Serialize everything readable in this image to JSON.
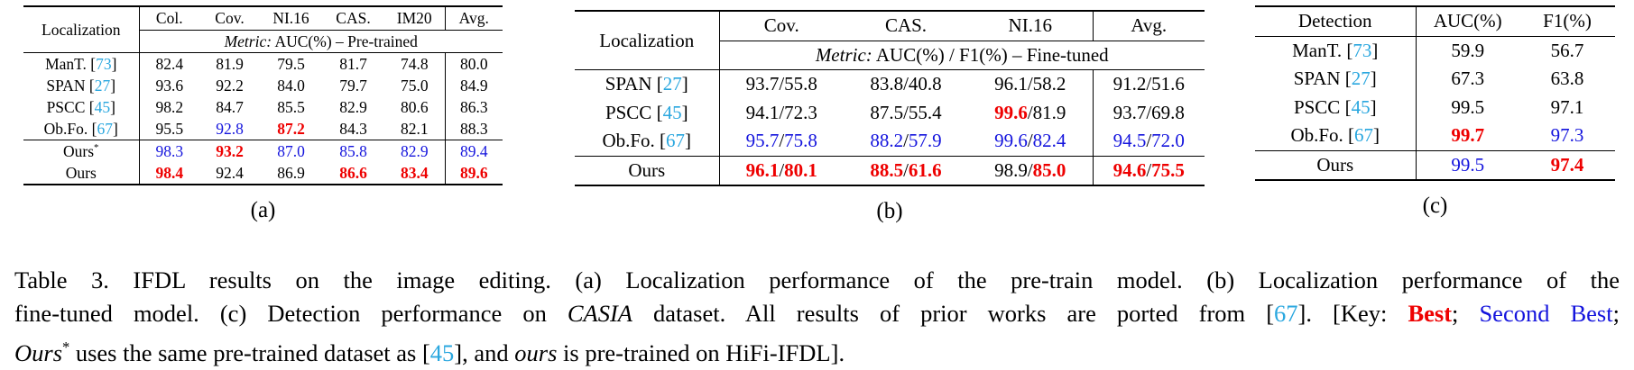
{
  "colors": {
    "best_red": "#ee0000",
    "second_blue": "#1414dd",
    "citation_cyan": "#2aa7df"
  },
  "table_a": {
    "corner": "Localization",
    "columns": [
      "Col.",
      "Cov.",
      "NI.16",
      "CAS.",
      "IM20",
      "Avg."
    ],
    "metric": [
      [
        "Metric:",
        "i"
      ],
      [
        " AUC(%) – Pre-trained",
        "n"
      ]
    ],
    "rows": [
      {
        "name": {
          "label": "ManT.",
          "ref": "73"
        },
        "cells": [
          [
            [
              "82.4",
              "n"
            ]
          ],
          [
            [
              "81.9",
              "n"
            ]
          ],
          [
            [
              "79.5",
              "n"
            ]
          ],
          [
            [
              "81.7",
              "n"
            ]
          ],
          [
            [
              "74.8",
              "n"
            ]
          ],
          [
            [
              "80.0",
              "n"
            ]
          ]
        ]
      },
      {
        "name": {
          "label": "SPAN",
          "ref": "27"
        },
        "cells": [
          [
            [
              "93.6",
              "n"
            ]
          ],
          [
            [
              "92.2",
              "n"
            ]
          ],
          [
            [
              "84.0",
              "n"
            ]
          ],
          [
            [
              "79.7",
              "n"
            ]
          ],
          [
            [
              "75.0",
              "n"
            ]
          ],
          [
            [
              "84.9",
              "n"
            ]
          ]
        ]
      },
      {
        "name": {
          "label": "PSCC",
          "ref": "45"
        },
        "cells": [
          [
            [
              "98.2",
              "n"
            ]
          ],
          [
            [
              "84.7",
              "n"
            ]
          ],
          [
            [
              "85.5",
              "n"
            ]
          ],
          [
            [
              "82.9",
              "n"
            ]
          ],
          [
            [
              "80.6",
              "n"
            ]
          ],
          [
            [
              "86.3",
              "n"
            ]
          ]
        ]
      },
      {
        "name": {
          "label": "Ob.Fo.",
          "ref": "67"
        },
        "cells": [
          [
            [
              "95.5",
              "n"
            ]
          ],
          [
            [
              "92.8",
              "sec"
            ]
          ],
          [
            [
              "87.2",
              "best"
            ]
          ],
          [
            [
              "84.3",
              "n"
            ]
          ],
          [
            [
              "82.1",
              "n"
            ]
          ],
          [
            [
              "88.3",
              "n"
            ]
          ]
        ]
      },
      {
        "rule": true,
        "name": {
          "label": "Ours",
          "sup": "*"
        },
        "cells": [
          [
            [
              "98.3",
              "sec"
            ]
          ],
          [
            [
              "93.2",
              "best"
            ]
          ],
          [
            [
              "87.0",
              "sec"
            ]
          ],
          [
            [
              "85.8",
              "sec"
            ]
          ],
          [
            [
              "82.9",
              "sec"
            ]
          ],
          [
            [
              "89.4",
              "sec"
            ]
          ]
        ]
      },
      {
        "name": {
          "label": "Ours"
        },
        "cells": [
          [
            [
              "98.4",
              "best"
            ]
          ],
          [
            [
              "92.4",
              "n"
            ]
          ],
          [
            [
              "86.9",
              "n"
            ]
          ],
          [
            [
              "86.6",
              "best"
            ]
          ],
          [
            [
              "83.4",
              "best"
            ]
          ],
          [
            [
              "89.6",
              "best"
            ]
          ]
        ]
      }
    ],
    "label": "(a)"
  },
  "table_b": {
    "corner": "Localization",
    "columns": [
      "Cov.",
      "CAS.",
      "NI.16",
      "Avg."
    ],
    "metric": [
      [
        "Metric:",
        "i"
      ],
      [
        " AUC(%) / F1(%) – Fine-tuned",
        "n"
      ]
    ],
    "rows": [
      {
        "name": {
          "label": "SPAN",
          "ref": "27"
        },
        "cells": [
          [
            [
              "93.7",
              "n"
            ],
            [
              "/",
              "n"
            ],
            [
              "55.8",
              "n"
            ]
          ],
          [
            [
              "83.8",
              "n"
            ],
            [
              "/",
              "n"
            ],
            [
              "40.8",
              "n"
            ]
          ],
          [
            [
              "96.1",
              "n"
            ],
            [
              "/",
              "n"
            ],
            [
              "58.2",
              "n"
            ]
          ],
          [
            [
              "91.2",
              "n"
            ],
            [
              "/",
              "n"
            ],
            [
              "51.6",
              "n"
            ]
          ]
        ]
      },
      {
        "name": {
          "label": "PSCC",
          "ref": "45"
        },
        "cells": [
          [
            [
              "94.1",
              "n"
            ],
            [
              "/",
              "n"
            ],
            [
              "72.3",
              "n"
            ]
          ],
          [
            [
              "87.5",
              "n"
            ],
            [
              "/",
              "n"
            ],
            [
              "55.4",
              "n"
            ]
          ],
          [
            [
              "99.6",
              "best"
            ],
            [
              "/",
              "n"
            ],
            [
              "81.9",
              "n"
            ]
          ],
          [
            [
              "93.7",
              "n"
            ],
            [
              "/",
              "n"
            ],
            [
              "69.8",
              "n"
            ]
          ]
        ]
      },
      {
        "name": {
          "label": "Ob.Fo.",
          "ref": "67"
        },
        "cells": [
          [
            [
              "95.7",
              "sec"
            ],
            [
              "/",
              "n"
            ],
            [
              "75.8",
              "sec"
            ]
          ],
          [
            [
              "88.2",
              "sec"
            ],
            [
              "/",
              "n"
            ],
            [
              "57.9",
              "sec"
            ]
          ],
          [
            [
              "99.6",
              "sec"
            ],
            [
              "/",
              "n"
            ],
            [
              "82.4",
              "sec"
            ]
          ],
          [
            [
              "94.5",
              "sec"
            ],
            [
              "/",
              "n"
            ],
            [
              "72.0",
              "sec"
            ]
          ]
        ]
      },
      {
        "rule": true,
        "name": {
          "label": "Ours"
        },
        "cells": [
          [
            [
              "96.1",
              "best"
            ],
            [
              "/",
              "n"
            ],
            [
              "80.1",
              "best"
            ]
          ],
          [
            [
              "88.5",
              "best"
            ],
            [
              "/",
              "n"
            ],
            [
              "61.6",
              "best"
            ]
          ],
          [
            [
              "98.9",
              "n"
            ],
            [
              "/",
              "n"
            ],
            [
              "85.0",
              "best"
            ]
          ],
          [
            [
              "94.6",
              "best"
            ],
            [
              "/",
              "n"
            ],
            [
              "75.5",
              "best"
            ]
          ]
        ]
      }
    ],
    "label": "(b)"
  },
  "table_c": {
    "corner": "Detection",
    "columns": [
      "AUC(%)",
      "F1(%)"
    ],
    "rows": [
      {
        "name": {
          "label": "ManT.",
          "ref": "73"
        },
        "cells": [
          [
            [
              "59.9",
              "n"
            ]
          ],
          [
            [
              "56.7",
              "n"
            ]
          ]
        ]
      },
      {
        "name": {
          "label": "SPAN",
          "ref": "27"
        },
        "cells": [
          [
            [
              "67.3",
              "n"
            ]
          ],
          [
            [
              "63.8",
              "n"
            ]
          ]
        ]
      },
      {
        "name": {
          "label": "PSCC",
          "ref": "45"
        },
        "cells": [
          [
            [
              "99.5",
              "n"
            ]
          ],
          [
            [
              "97.1",
              "n"
            ]
          ]
        ]
      },
      {
        "name": {
          "label": "Ob.Fo.",
          "ref": "67"
        },
        "cells": [
          [
            [
              "99.7",
              "best"
            ]
          ],
          [
            [
              "97.3",
              "sec"
            ]
          ]
        ]
      },
      {
        "rule": true,
        "name": {
          "label": "Ours"
        },
        "cells": [
          [
            [
              "99.5",
              "sec"
            ]
          ],
          [
            [
              "97.4",
              "best"
            ]
          ]
        ]
      }
    ],
    "label": "(c)"
  },
  "caption": {
    "lines": [
      [
        [
          "Table 3.  IFDL results on the image editing.  (a) Localization performance of the pre-train model.  (b) Localization performance of the",
          "n"
        ]
      ],
      [
        [
          "fine-tuned model. (c) Detection performance on ",
          "n"
        ],
        [
          "CASIA",
          "i"
        ],
        [
          " dataset. All results of prior works are ported from [",
          "n"
        ],
        [
          "67",
          "ref"
        ],
        [
          "]. [Key: ",
          "n"
        ],
        [
          "Best",
          "best"
        ],
        [
          "; ",
          "n"
        ],
        [
          "Second Best",
          "sec"
        ],
        [
          ";",
          "n"
        ]
      ],
      [
        [
          "Ours",
          "i"
        ],
        [
          "*",
          "sup"
        ],
        [
          " uses the same pre-trained dataset as [",
          "n"
        ],
        [
          "45",
          "ref"
        ],
        [
          "], and ",
          "n"
        ],
        [
          "ours",
          "i"
        ],
        [
          " is pre-trained on HiFi-IFDL].",
          "n"
        ]
      ]
    ]
  }
}
